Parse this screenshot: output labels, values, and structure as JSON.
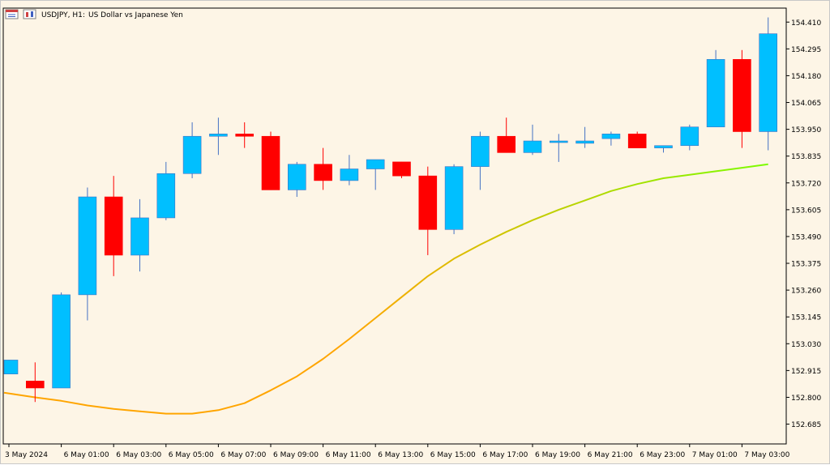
{
  "header": {
    "symbol_tf": "USDJPY, H1:",
    "description": "US Dollar vs Japanese Yen"
  },
  "icons": [
    "window-icon",
    "chart-icon"
  ],
  "colors": {
    "background": "#fdf5e6",
    "bull": "#00bfff",
    "bear": "#ff0000",
    "wick_bull": "#4472c4",
    "wick_bear": "#ff0000",
    "ma_start": "#ffa500",
    "ma_end": "#7cfc00"
  },
  "chart_data": {
    "type": "candlestick",
    "title": "",
    "xlabel": "",
    "ylabel": "",
    "ylim": [
      152.6,
      154.47
    ],
    "y_ticks": [
      "154.410",
      "154.295",
      "154.180",
      "154.065",
      "153.950",
      "153.835",
      "153.720",
      "153.605",
      "153.490",
      "153.375",
      "153.260",
      "153.145",
      "153.030",
      "152.915",
      "152.800",
      "152.685"
    ],
    "x_labels": [
      "3 May 2024",
      "6 May 01:00",
      "6 May 03:00",
      "6 May 05:00",
      "6 May 07:00",
      "6 May 09:00",
      "6 May 11:00",
      "6 May 13:00",
      "6 May 15:00",
      "6 May 17:00",
      "6 May 19:00",
      "6 May 21:00",
      "6 May 23:00",
      "7 May 01:00",
      "7 May 03:00"
    ],
    "x_label_bars": [
      0,
      2,
      4,
      6,
      8,
      10,
      12,
      14,
      16,
      18,
      20,
      22,
      24,
      26,
      28
    ],
    "candles": [
      {
        "o": 152.9,
        "h": 152.96,
        "l": 152.9,
        "c": 152.96
      },
      {
        "o": 152.87,
        "h": 152.95,
        "l": 152.78,
        "c": 152.84
      },
      {
        "o": 152.84,
        "h": 153.25,
        "l": 152.84,
        "c": 153.24
      },
      {
        "o": 153.24,
        "h": 153.7,
        "l": 153.13,
        "c": 153.66
      },
      {
        "o": 153.66,
        "h": 153.75,
        "l": 153.32,
        "c": 153.41
      },
      {
        "o": 153.41,
        "h": 153.65,
        "l": 153.34,
        "c": 153.57
      },
      {
        "o": 153.57,
        "h": 153.81,
        "l": 153.56,
        "c": 153.76
      },
      {
        "o": 153.76,
        "h": 153.98,
        "l": 153.74,
        "c": 153.92
      },
      {
        "o": 153.92,
        "h": 154.0,
        "l": 153.84,
        "c": 153.93
      },
      {
        "o": 153.93,
        "h": 153.98,
        "l": 153.87,
        "c": 153.92
      },
      {
        "o": 153.92,
        "h": 153.94,
        "l": 153.69,
        "c": 153.69
      },
      {
        "o": 153.69,
        "h": 153.81,
        "l": 153.66,
        "c": 153.8
      },
      {
        "o": 153.8,
        "h": 153.87,
        "l": 153.69,
        "c": 153.73
      },
      {
        "o": 153.73,
        "h": 153.84,
        "l": 153.71,
        "c": 153.78
      },
      {
        "o": 153.78,
        "h": 153.82,
        "l": 153.69,
        "c": 153.82
      },
      {
        "o": 153.81,
        "h": 153.81,
        "l": 153.74,
        "c": 153.75
      },
      {
        "o": 153.75,
        "h": 153.79,
        "l": 153.41,
        "c": 153.52
      },
      {
        "o": 153.52,
        "h": 153.8,
        "l": 153.5,
        "c": 153.79
      },
      {
        "o": 153.79,
        "h": 153.94,
        "l": 153.69,
        "c": 153.92
      },
      {
        "o": 153.92,
        "h": 154.0,
        "l": 153.85,
        "c": 153.85
      },
      {
        "o": 153.85,
        "h": 153.97,
        "l": 153.84,
        "c": 153.9
      },
      {
        "o": 153.9,
        "h": 153.93,
        "l": 153.81,
        "c": 153.9
      },
      {
        "o": 153.89,
        "h": 153.96,
        "l": 153.87,
        "c": 153.9
      },
      {
        "o": 153.91,
        "h": 153.94,
        "l": 153.88,
        "c": 153.93
      },
      {
        "o": 153.93,
        "h": 153.94,
        "l": 153.87,
        "c": 153.87
      },
      {
        "o": 153.87,
        "h": 153.88,
        "l": 153.85,
        "c": 153.88
      },
      {
        "o": 153.88,
        "h": 153.97,
        "l": 153.86,
        "c": 153.96
      },
      {
        "o": 153.96,
        "h": 154.29,
        "l": 153.96,
        "c": 154.25
      },
      {
        "o": 154.25,
        "h": 154.29,
        "l": 153.87,
        "c": 153.94
      },
      {
        "o": 153.94,
        "h": 154.43,
        "l": 153.86,
        "c": 154.36
      }
    ],
    "moving_average": {
      "values": [
        152.82,
        152.8,
        152.785,
        152.765,
        152.75,
        152.74,
        152.73,
        152.73,
        152.745,
        152.775,
        152.83,
        152.89,
        152.965,
        153.05,
        153.14,
        153.23,
        153.32,
        153.395,
        153.455,
        153.51,
        153.56,
        153.605,
        153.645,
        153.685,
        153.715,
        153.74,
        153.755,
        153.77,
        153.785,
        153.8
      ]
    }
  }
}
